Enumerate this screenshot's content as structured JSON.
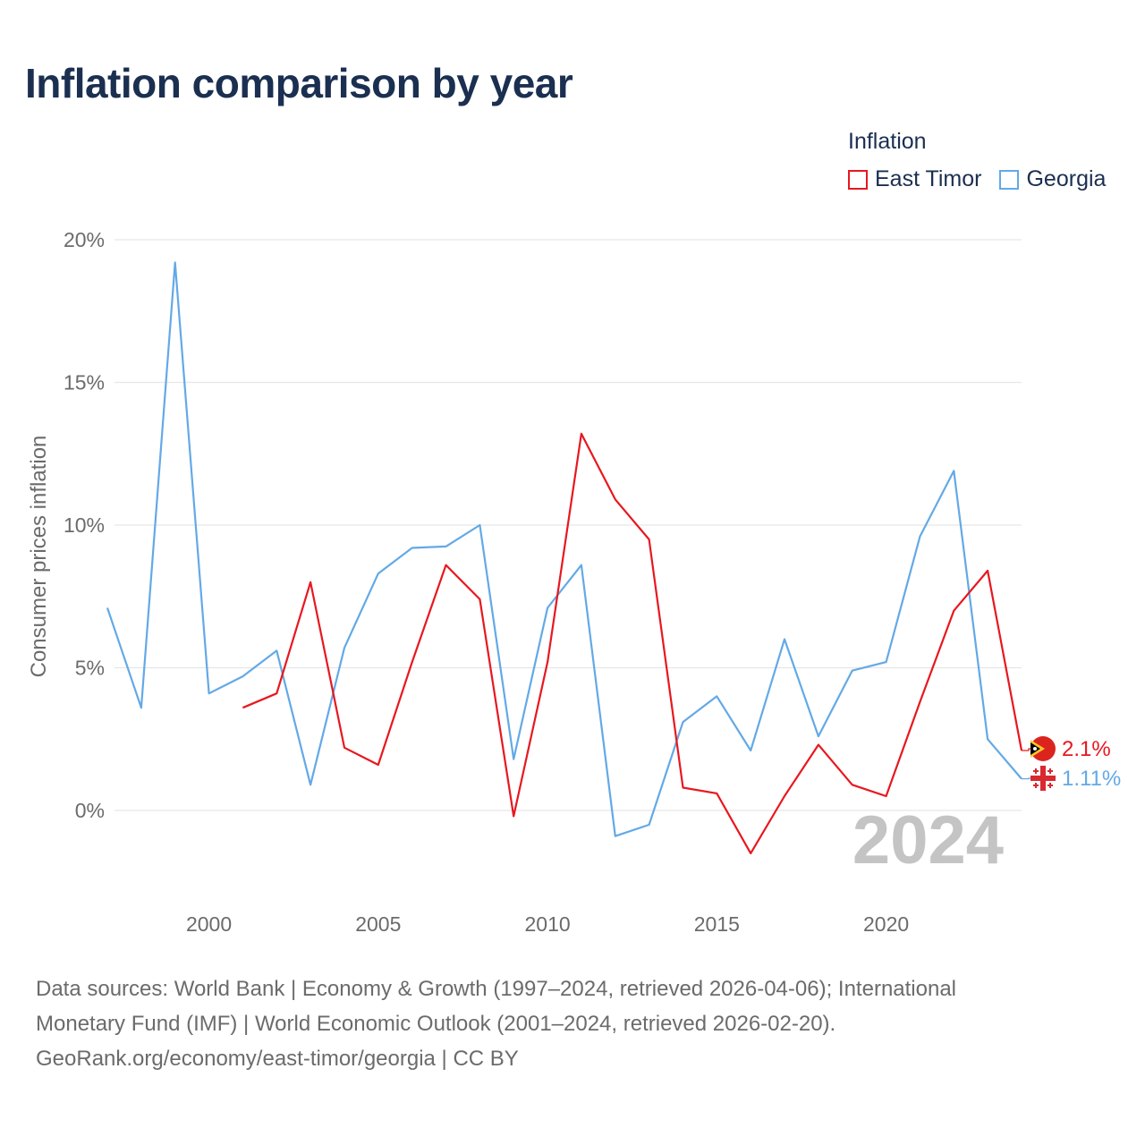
{
  "title": "Inflation comparison by year",
  "legend": {
    "title": "Inflation",
    "items": [
      {
        "label": "East Timor",
        "color": "#e8171f"
      },
      {
        "label": "Georgia",
        "color": "#63a9e6"
      }
    ]
  },
  "chart_data": {
    "type": "line",
    "title": "Inflation comparison by year",
    "xlabel": "",
    "ylabel": "Consumer prices inflation",
    "xlim": [
      1997,
      2024
    ],
    "ylim": [
      -3,
      20
    ],
    "x_ticks": [
      2000,
      2005,
      2010,
      2015,
      2020
    ],
    "y_ticks": [
      0,
      5,
      10,
      15,
      20
    ],
    "y_tick_labels": [
      "0%",
      "5%",
      "10%",
      "15%",
      "20%"
    ],
    "year_watermark": "2024",
    "series": [
      {
        "name": "Georgia",
        "color": "#63a9e6",
        "end_label": "1.11%",
        "x": [
          1997,
          1998,
          1999,
          2000,
          2001,
          2002,
          2003,
          2004,
          2005,
          2006,
          2007,
          2008,
          2009,
          2010,
          2011,
          2012,
          2013,
          2014,
          2015,
          2016,
          2017,
          2018,
          2019,
          2020,
          2021,
          2022,
          2023,
          2024
        ],
        "values": [
          7.1,
          3.6,
          19.2,
          4.1,
          4.7,
          5.6,
          0.9,
          5.7,
          8.3,
          9.2,
          9.25,
          10.0,
          1.8,
          7.1,
          8.6,
          -0.9,
          -0.5,
          3.1,
          4.0,
          2.1,
          6.0,
          2.6,
          4.9,
          5.2,
          9.6,
          11.9,
          2.5,
          1.11
        ]
      },
      {
        "name": "East Timor",
        "color": "#e8171f",
        "end_label": "2.1%",
        "x": [
          2001,
          2002,
          2003,
          2004,
          2005,
          2006,
          2007,
          2008,
          2009,
          2010,
          2011,
          2012,
          2013,
          2014,
          2015,
          2016,
          2017,
          2018,
          2019,
          2020,
          2021,
          2022,
          2023,
          2024
        ],
        "values": [
          3.6,
          4.1,
          8.0,
          2.2,
          1.6,
          5.2,
          8.6,
          7.4,
          -0.2,
          5.2,
          13.2,
          10.9,
          9.5,
          0.8,
          0.6,
          -1.5,
          0.5,
          2.3,
          0.9,
          0.5,
          3.8,
          7.0,
          8.4,
          2.1
        ]
      }
    ]
  },
  "footer": {
    "line1": "Data sources: World Bank | Economy & Growth (1997–2024, retrieved 2026-04-06); International",
    "line2": "Monetary Fund (IMF) | World Economic Outlook (2001–2024, retrieved 2026-02-20).",
    "line3": "GeoRank.org/economy/east-timor/georgia | CC BY"
  }
}
